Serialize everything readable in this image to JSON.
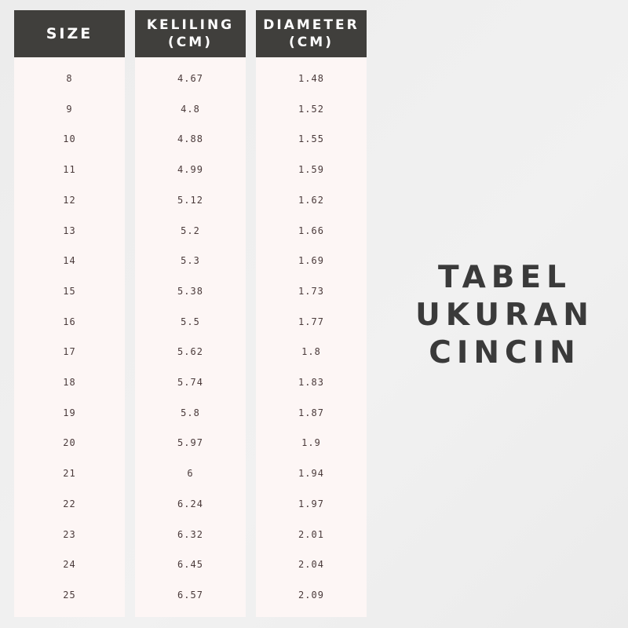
{
  "table": {
    "headers": [
      {
        "line1": "SIZE",
        "line2": ""
      },
      {
        "line1": "KELILING",
        "line2": "(CM)"
      },
      {
        "line1": "DIAMETER",
        "line2": "(CM)"
      }
    ],
    "rows": [
      [
        "8",
        "4.67",
        "1.48"
      ],
      [
        "9",
        "4.8",
        "1.52"
      ],
      [
        "10",
        "4.88",
        "1.55"
      ],
      [
        "11",
        "4.99",
        "1.59"
      ],
      [
        "12",
        "5.12",
        "1.62"
      ],
      [
        "13",
        "5.2",
        "1.66"
      ],
      [
        "14",
        "5.3",
        "1.69"
      ],
      [
        "15",
        "5.38",
        "1.73"
      ],
      [
        "16",
        "5.5",
        "1.77"
      ],
      [
        "17",
        "5.62",
        "1.8"
      ],
      [
        "18",
        "5.74",
        "1.83"
      ],
      [
        "19",
        "5.8",
        "1.87"
      ],
      [
        "20",
        "5.97",
        "1.9"
      ],
      [
        "21",
        "6",
        "1.94"
      ],
      [
        "22",
        "6.24",
        "1.97"
      ],
      [
        "23",
        "6.32",
        "2.01"
      ],
      [
        "24",
        "6.45",
        "2.04"
      ],
      [
        "25",
        "6.57",
        "2.09"
      ]
    ]
  },
  "title": {
    "lines": [
      "TABEL",
      "UKURAN",
      "CINCIN"
    ]
  },
  "colors": {
    "header_bg": "#403f3c",
    "column_bg": "#fdf6f5",
    "text": "#3a3a3a"
  }
}
